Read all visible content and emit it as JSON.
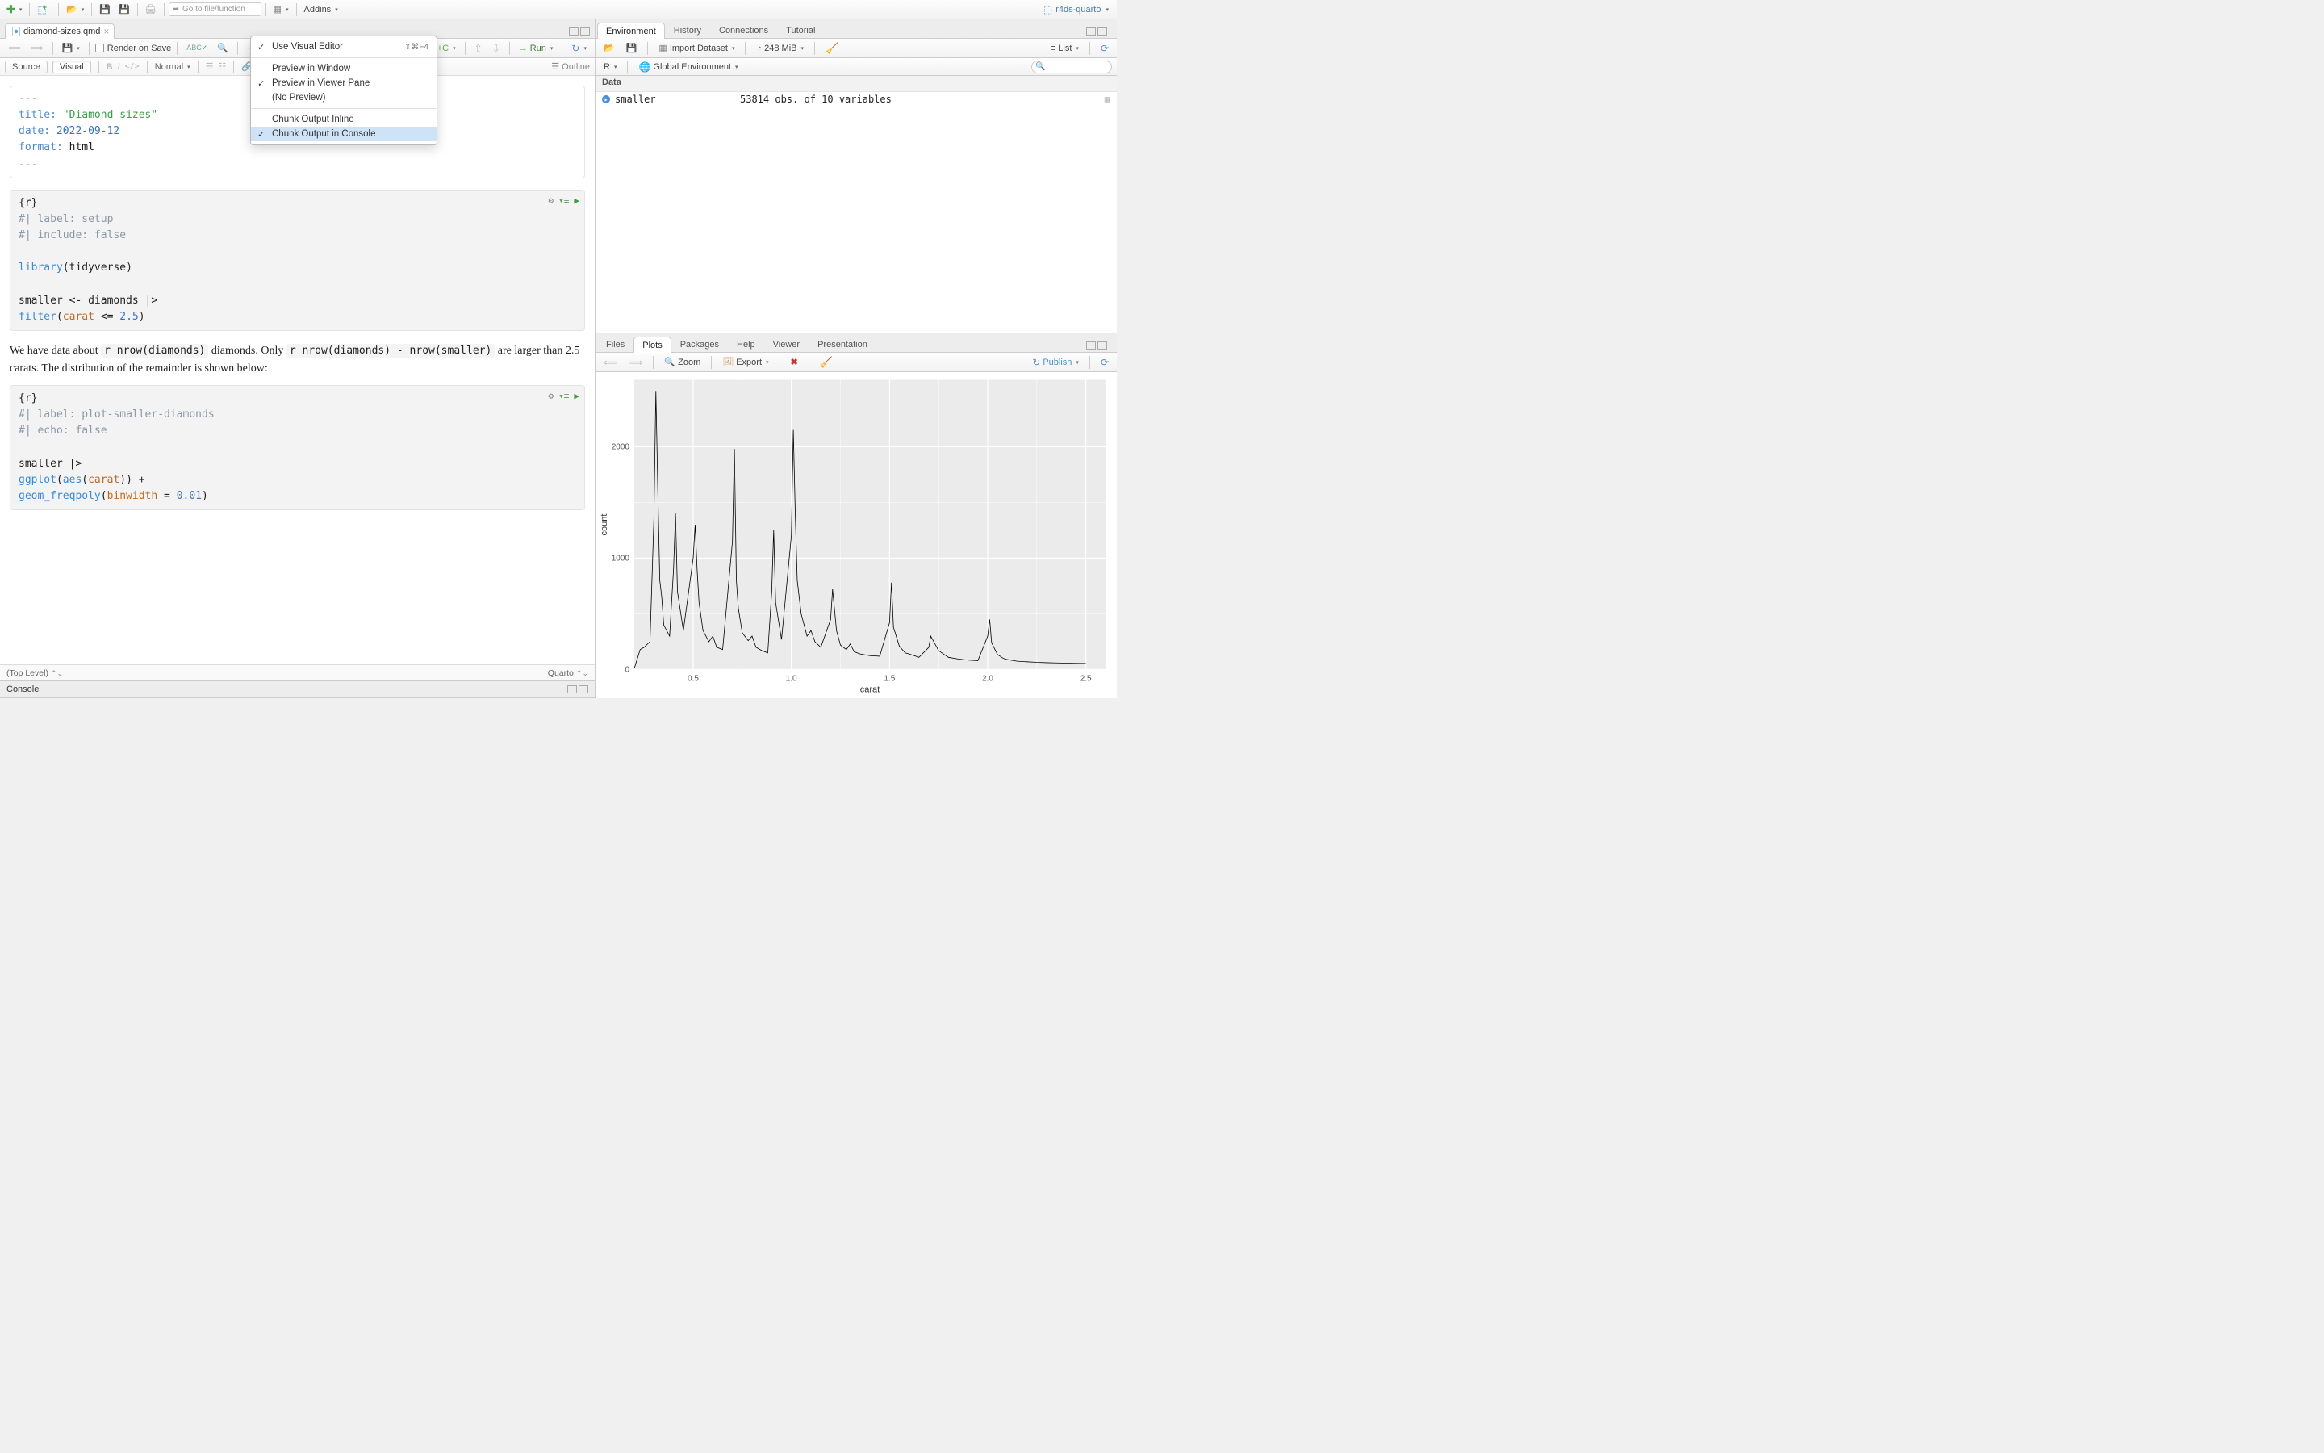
{
  "main_toolbar": {
    "goto_placeholder": "Go to file/function",
    "addins_label": "Addins",
    "project_name": "r4ds-quarto"
  },
  "file_tab": {
    "name": "diamond-sizes.qmd"
  },
  "src_toolbar": {
    "render_on_save": "Render on Save",
    "render": "Render",
    "run": "Run"
  },
  "src_toolbar2": {
    "source": "Source",
    "visual": "Visual",
    "bold": "B",
    "italic": "I",
    "code": "</>",
    "normal": "Normal",
    "outline": "Outline"
  },
  "dropdown": {
    "use_visual": "Use Visual Editor",
    "use_visual_kbd": "⇧⌘F4",
    "preview_window": "Preview in Window",
    "preview_viewer": "Preview in Viewer Pane",
    "no_preview": "(No Preview)",
    "chunk_inline": "Chunk Output Inline",
    "chunk_console": "Chunk Output in Console"
  },
  "yaml": {
    "dashes": "---",
    "title_key": "title:",
    "title_val": "\"Diamond sizes\"",
    "date_key": "date:",
    "date_val": "2022-09-12",
    "format_key": "format:",
    "format_val": "html"
  },
  "chunk1": {
    "header": "{r}",
    "l1a": "#| ",
    "l1b": "label:",
    "l1c": " setup",
    "l2a": "#| ",
    "l2b": "include:",
    "l2c": " false",
    "l3a": "library",
    "l3b": "(tidyverse)",
    "l4": "smaller <- diamonds |>",
    "l5a": "  filter",
    "l5b": "(",
    "l5c": "carat",
    "l5d": " <= ",
    "l5e": "2.5",
    "l5f": ")"
  },
  "prose": {
    "t1": "We have data about ",
    "ic1": "r nrow(diamonds)",
    "t2": " diamonds. Only ",
    "ic2": "r nrow(diamonds) - nrow(smaller)",
    "t3": " are larger than 2.5 carats. The distribution of the remainder is shown below:"
  },
  "chunk2": {
    "header": "{r}",
    "l1a": "#| ",
    "l1b": "label:",
    "l1c": " plot-smaller-diamonds",
    "l2a": "#| ",
    "l2b": "echo:",
    "l2c": " false",
    "l3": "smaller |>",
    "l4a": "  ggplot",
    "l4b": "(",
    "l4c": "aes",
    "l4d": "(",
    "l4e": "carat",
    "l4f": ")) +",
    "l5a": "  geom_freqpoly",
    "l5b": "(",
    "l5c": "binwidth",
    "l5d": " = ",
    "l5e": "0.01",
    "l5f": ")"
  },
  "status": {
    "top_level": "(Top Level)",
    "quarto": "Quarto"
  },
  "console_tab": "Console",
  "env": {
    "tabs": [
      "Environment",
      "History",
      "Connections",
      "Tutorial"
    ],
    "active_tab": 0,
    "import": "Import Dataset",
    "mem": "248 MiB",
    "list": "List",
    "scope_r": "R",
    "scope_global": "Global Environment",
    "section": "Data",
    "row_name": "smaller",
    "row_val": "53814 obs. of 10 variables"
  },
  "plots": {
    "tabs": [
      "Files",
      "Plots",
      "Packages",
      "Help",
      "Viewer",
      "Presentation"
    ],
    "active_tab": 1,
    "zoom": "Zoom",
    "export": "Export",
    "publish": "Publish"
  },
  "chart": {
    "type": "line",
    "xlabel": "carat",
    "ylabel": "count",
    "panel_bg": "#ebebeb",
    "grid_major": "#ffffff",
    "line_color": "#000000",
    "line_width": 0.8,
    "axis_text_color": "#555555",
    "axis_title_color": "#333333",
    "axis_fontsize": 10,
    "xlim": [
      0.2,
      2.6
    ],
    "ylim": [
      0,
      2600
    ],
    "xticks": [
      0.5,
      1.0,
      1.5,
      2.0,
      2.5
    ],
    "yticks": [
      0,
      1000,
      2000
    ],
    "series_x": [
      0.2,
      0.23,
      0.25,
      0.28,
      0.3,
      0.31,
      0.32,
      0.33,
      0.34,
      0.35,
      0.38,
      0.4,
      0.41,
      0.42,
      0.45,
      0.5,
      0.51,
      0.52,
      0.53,
      0.55,
      0.58,
      0.6,
      0.62,
      0.65,
      0.7,
      0.71,
      0.72,
      0.73,
      0.75,
      0.78,
      0.8,
      0.82,
      0.85,
      0.88,
      0.9,
      0.91,
      0.92,
      0.95,
      1.0,
      1.01,
      1.02,
      1.03,
      1.05,
      1.08,
      1.1,
      1.12,
      1.15,
      1.2,
      1.21,
      1.23,
      1.25,
      1.28,
      1.3,
      1.32,
      1.35,
      1.4,
      1.45,
      1.5,
      1.51,
      1.52,
      1.55,
      1.58,
      1.6,
      1.65,
      1.7,
      1.71,
      1.75,
      1.8,
      1.85,
      1.9,
      1.95,
      2.0,
      2.01,
      2.02,
      2.05,
      2.08,
      2.1,
      2.15,
      2.2,
      2.25,
      2.3,
      2.35,
      2.4,
      2.45,
      2.5
    ],
    "series_y": [
      10,
      180,
      200,
      250,
      1350,
      2500,
      1600,
      800,
      650,
      400,
      300,
      900,
      1400,
      700,
      350,
      1000,
      1300,
      900,
      600,
      350,
      250,
      300,
      200,
      180,
      1150,
      1980,
      800,
      550,
      330,
      260,
      300,
      200,
      170,
      150,
      700,
      1250,
      600,
      270,
      1200,
      2150,
      1400,
      800,
      500,
      300,
      350,
      250,
      200,
      450,
      720,
      350,
      220,
      180,
      230,
      160,
      140,
      125,
      120,
      420,
      780,
      380,
      210,
      150,
      140,
      110,
      200,
      300,
      170,
      110,
      95,
      85,
      80,
      300,
      450,
      240,
      135,
      100,
      90,
      75,
      70,
      65,
      62,
      60,
      58,
      56,
      55
    ]
  }
}
